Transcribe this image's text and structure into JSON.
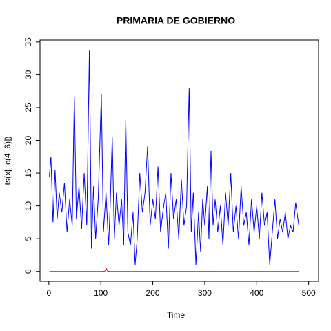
{
  "chart_data": {
    "type": "line",
    "title": "PRIMARIA DE GOBIERNO",
    "xlabel": "Time",
    "ylabel": "ts(x[, c(4, 6)])",
    "xlim": [
      -17,
      519
    ],
    "ylim": [
      -1.5,
      35.3
    ],
    "xticks": [
      0,
      100,
      200,
      300,
      400,
      500
    ],
    "yticks": [
      0,
      5,
      10,
      15,
      20,
      25,
      30,
      35
    ],
    "series": [
      {
        "color": "#0000ff",
        "x": [
          1,
          4,
          8,
          12,
          16,
          20,
          25,
          30,
          35,
          40,
          45,
          49,
          53,
          58,
          63,
          68,
          73,
          78,
          82,
          86,
          90,
          95,
          101,
          105,
          110,
          115,
          118,
          122,
          126,
          130,
          135,
          140,
          144,
          148,
          152,
          157,
          162,
          166,
          170,
          175,
          180,
          185,
          190,
          195,
          200,
          205,
          210,
          215,
          220,
          225,
          230,
          235,
          240,
          245,
          250,
          255,
          260,
          265,
          270,
          274,
          278,
          283,
          288,
          292,
          296,
          300,
          305,
          308,
          312,
          316,
          320,
          325,
          330,
          335,
          340,
          345,
          350,
          355,
          360,
          365,
          370,
          375,
          380,
          385,
          390,
          395,
          400,
          405,
          410,
          415,
          420,
          425,
          430,
          435,
          440,
          445,
          450,
          455,
          460,
          465,
          470,
          475,
          481
        ],
        "values": [
          14.5,
          17.5,
          7.5,
          15.5,
          8,
          12,
          9,
          13.5,
          6,
          11,
          7,
          26.7,
          8,
          13,
          6.5,
          15,
          7,
          33.7,
          3.5,
          13,
          5,
          11,
          27,
          6,
          12,
          4,
          10,
          20.5,
          5,
          12,
          7,
          11,
          4,
          23.2,
          6,
          4,
          9,
          1,
          5,
          15,
          9,
          12,
          19.1,
          7,
          11,
          8,
          16,
          6,
          9.5,
          12,
          3.5,
          15,
          8,
          11,
          5,
          14,
          7,
          10,
          28,
          6,
          12,
          1,
          9,
          3,
          11,
          7,
          13,
          5,
          18.4,
          7,
          11,
          6,
          10,
          4,
          12,
          7,
          15,
          6,
          10,
          5,
          13,
          7,
          9,
          4,
          11,
          6,
          10,
          5,
          12,
          7,
          9,
          1,
          6,
          11,
          5,
          8,
          6,
          9,
          5,
          7,
          6,
          10.5,
          7
        ]
      },
      {
        "color": "#ff0000",
        "x": [
          1,
          105,
          109,
          111,
          113,
          117,
          481
        ],
        "values": [
          0,
          0,
          0.1,
          0.4,
          0.05,
          0,
          0
        ]
      }
    ]
  }
}
